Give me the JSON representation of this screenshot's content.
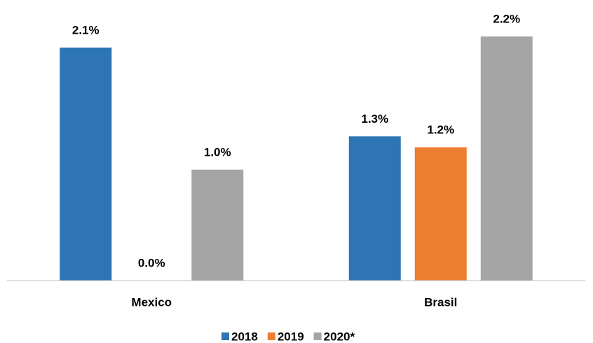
{
  "chart_data": {
    "type": "bar",
    "categories": [
      "Mexico",
      "Brasil"
    ],
    "series": [
      {
        "name": "2018",
        "color": "#2e75b6",
        "values": [
          2.1,
          1.3
        ],
        "value_labels": [
          "2.1%",
          "1.3%"
        ]
      },
      {
        "name": "2019",
        "color": "#ed7d31",
        "values": [
          0.0,
          1.2
        ],
        "value_labels": [
          "0.0%",
          "1.2%"
        ]
      },
      {
        "name": "2020*",
        "color": "#a5a5a5",
        "values": [
          1.0,
          2.2
        ],
        "value_labels": [
          "1.0%",
          "2.2%"
        ]
      }
    ],
    "ylim": [
      0,
      2.5
    ],
    "legend": "bottom"
  }
}
